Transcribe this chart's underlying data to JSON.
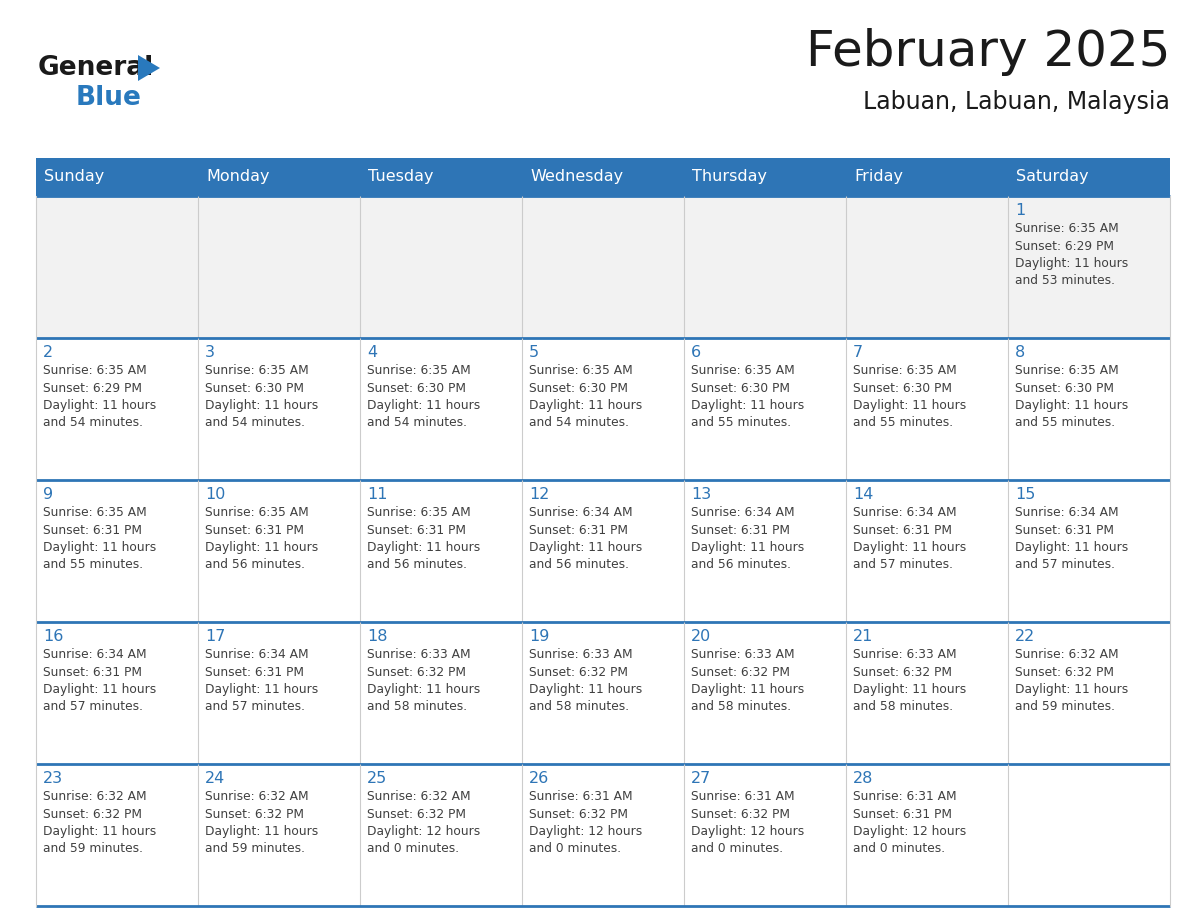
{
  "title": "February 2025",
  "subtitle": "Labuan, Labuan, Malaysia",
  "header_bg_color": "#2E75B6",
  "header_text_color": "#FFFFFF",
  "cell_border_color": "#2E75B6",
  "day_number_color": "#2E75B6",
  "cell_text_color": "#404040",
  "background_color": "#FFFFFF",
  "first_row_bg": "#F2F2F2",
  "days_of_week": [
    "Sunday",
    "Monday",
    "Tuesday",
    "Wednesday",
    "Thursday",
    "Friday",
    "Saturday"
  ],
  "weeks": [
    [
      {
        "day": 0,
        "text": ""
      },
      {
        "day": 0,
        "text": ""
      },
      {
        "day": 0,
        "text": ""
      },
      {
        "day": 0,
        "text": ""
      },
      {
        "day": 0,
        "text": ""
      },
      {
        "day": 0,
        "text": ""
      },
      {
        "day": 1,
        "text": "Sunrise: 6:35 AM\nSunset: 6:29 PM\nDaylight: 11 hours\nand 53 minutes."
      }
    ],
    [
      {
        "day": 2,
        "text": "Sunrise: 6:35 AM\nSunset: 6:29 PM\nDaylight: 11 hours\nand 54 minutes."
      },
      {
        "day": 3,
        "text": "Sunrise: 6:35 AM\nSunset: 6:30 PM\nDaylight: 11 hours\nand 54 minutes."
      },
      {
        "day": 4,
        "text": "Sunrise: 6:35 AM\nSunset: 6:30 PM\nDaylight: 11 hours\nand 54 minutes."
      },
      {
        "day": 5,
        "text": "Sunrise: 6:35 AM\nSunset: 6:30 PM\nDaylight: 11 hours\nand 54 minutes."
      },
      {
        "day": 6,
        "text": "Sunrise: 6:35 AM\nSunset: 6:30 PM\nDaylight: 11 hours\nand 55 minutes."
      },
      {
        "day": 7,
        "text": "Sunrise: 6:35 AM\nSunset: 6:30 PM\nDaylight: 11 hours\nand 55 minutes."
      },
      {
        "day": 8,
        "text": "Sunrise: 6:35 AM\nSunset: 6:30 PM\nDaylight: 11 hours\nand 55 minutes."
      }
    ],
    [
      {
        "day": 9,
        "text": "Sunrise: 6:35 AM\nSunset: 6:31 PM\nDaylight: 11 hours\nand 55 minutes."
      },
      {
        "day": 10,
        "text": "Sunrise: 6:35 AM\nSunset: 6:31 PM\nDaylight: 11 hours\nand 56 minutes."
      },
      {
        "day": 11,
        "text": "Sunrise: 6:35 AM\nSunset: 6:31 PM\nDaylight: 11 hours\nand 56 minutes."
      },
      {
        "day": 12,
        "text": "Sunrise: 6:34 AM\nSunset: 6:31 PM\nDaylight: 11 hours\nand 56 minutes."
      },
      {
        "day": 13,
        "text": "Sunrise: 6:34 AM\nSunset: 6:31 PM\nDaylight: 11 hours\nand 56 minutes."
      },
      {
        "day": 14,
        "text": "Sunrise: 6:34 AM\nSunset: 6:31 PM\nDaylight: 11 hours\nand 57 minutes."
      },
      {
        "day": 15,
        "text": "Sunrise: 6:34 AM\nSunset: 6:31 PM\nDaylight: 11 hours\nand 57 minutes."
      }
    ],
    [
      {
        "day": 16,
        "text": "Sunrise: 6:34 AM\nSunset: 6:31 PM\nDaylight: 11 hours\nand 57 minutes."
      },
      {
        "day": 17,
        "text": "Sunrise: 6:34 AM\nSunset: 6:31 PM\nDaylight: 11 hours\nand 57 minutes."
      },
      {
        "day": 18,
        "text": "Sunrise: 6:33 AM\nSunset: 6:32 PM\nDaylight: 11 hours\nand 58 minutes."
      },
      {
        "day": 19,
        "text": "Sunrise: 6:33 AM\nSunset: 6:32 PM\nDaylight: 11 hours\nand 58 minutes."
      },
      {
        "day": 20,
        "text": "Sunrise: 6:33 AM\nSunset: 6:32 PM\nDaylight: 11 hours\nand 58 minutes."
      },
      {
        "day": 21,
        "text": "Sunrise: 6:33 AM\nSunset: 6:32 PM\nDaylight: 11 hours\nand 58 minutes."
      },
      {
        "day": 22,
        "text": "Sunrise: 6:32 AM\nSunset: 6:32 PM\nDaylight: 11 hours\nand 59 minutes."
      }
    ],
    [
      {
        "day": 23,
        "text": "Sunrise: 6:32 AM\nSunset: 6:32 PM\nDaylight: 11 hours\nand 59 minutes."
      },
      {
        "day": 24,
        "text": "Sunrise: 6:32 AM\nSunset: 6:32 PM\nDaylight: 11 hours\nand 59 minutes."
      },
      {
        "day": 25,
        "text": "Sunrise: 6:32 AM\nSunset: 6:32 PM\nDaylight: 12 hours\nand 0 minutes."
      },
      {
        "day": 26,
        "text": "Sunrise: 6:31 AM\nSunset: 6:32 PM\nDaylight: 12 hours\nand 0 minutes."
      },
      {
        "day": 27,
        "text": "Sunrise: 6:31 AM\nSunset: 6:32 PM\nDaylight: 12 hours\nand 0 minutes."
      },
      {
        "day": 28,
        "text": "Sunrise: 6:31 AM\nSunset: 6:31 PM\nDaylight: 12 hours\nand 0 minutes."
      },
      {
        "day": 0,
        "text": ""
      }
    ]
  ],
  "logo_text_general": "General",
  "logo_text_blue": "Blue",
  "logo_color_general": "#1a1a1a",
  "logo_color_blue": "#2979BD",
  "logo_triangle_color": "#2979BD"
}
